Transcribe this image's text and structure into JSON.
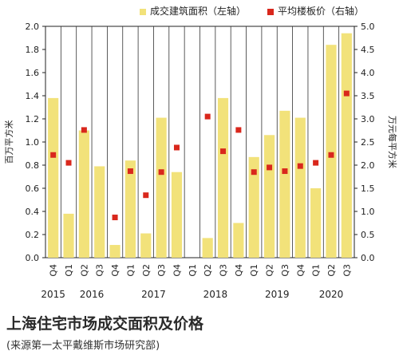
{
  "chart_data": {
    "type": "bar",
    "title": "上海住宅市场成交面积及价格",
    "source": "(来源第一太平戴维斯市场研究部)",
    "ylabel_left": "百万平方米",
    "ylabel_right": "万元每平方米",
    "ylim_left": [
      0,
      2.0
    ],
    "ylim_right": [
      0,
      5.0
    ],
    "yticks_left": [
      "0.0",
      "0.2",
      "0.4",
      "0.6",
      "0.8",
      "1.0",
      "1.2",
      "1.4",
      "1.6",
      "1.8",
      "2.0"
    ],
    "yticks_right": [
      "0.0",
      "0.5",
      "1.0",
      "1.5",
      "2.0",
      "2.5",
      "3.0",
      "3.5",
      "4.0",
      "4.5",
      "5.0"
    ],
    "grid": true,
    "legend_placement": "top",
    "categories": [
      "Q4",
      "Q1",
      "Q2",
      "Q3",
      "Q4",
      "Q1",
      "Q2",
      "Q3",
      "Q4",
      "Q1",
      "Q2",
      "Q3",
      "Q4",
      "Q1",
      "Q2",
      "Q3",
      "Q4",
      "Q1",
      "Q2",
      "Q3"
    ],
    "years": [
      {
        "label": "2015",
        "start": 0,
        "end": 0
      },
      {
        "label": "2016",
        "start": 1,
        "end": 4
      },
      {
        "label": "2017",
        "start": 5,
        "end": 8
      },
      {
        "label": "2018",
        "start": 9,
        "end": 12
      },
      {
        "label": "2019",
        "start": 13,
        "end": 16
      },
      {
        "label": "2020",
        "start": 17,
        "end": 19
      }
    ],
    "series": [
      {
        "name": "成交建筑面积（左轴）",
        "type": "bar",
        "axis": "left",
        "color": "#f2e27a",
        "values": [
          1.38,
          0.38,
          1.1,
          0.79,
          0.11,
          0.84,
          0.21,
          1.21,
          0.74,
          null,
          0.17,
          1.38,
          0.3,
          0.87,
          1.06,
          1.27,
          1.21,
          0.6,
          1.84,
          1.94
        ]
      },
      {
        "name": "平均楼板价（右轴）",
        "type": "scatter",
        "axis": "right",
        "color": "#d9271c",
        "values": [
          2.22,
          2.05,
          2.76,
          null,
          0.87,
          1.87,
          1.35,
          1.85,
          2.38,
          null,
          3.05,
          2.3,
          2.76,
          1.85,
          1.95,
          1.87,
          1.98,
          2.05,
          2.22,
          3.55
        ]
      }
    ]
  }
}
